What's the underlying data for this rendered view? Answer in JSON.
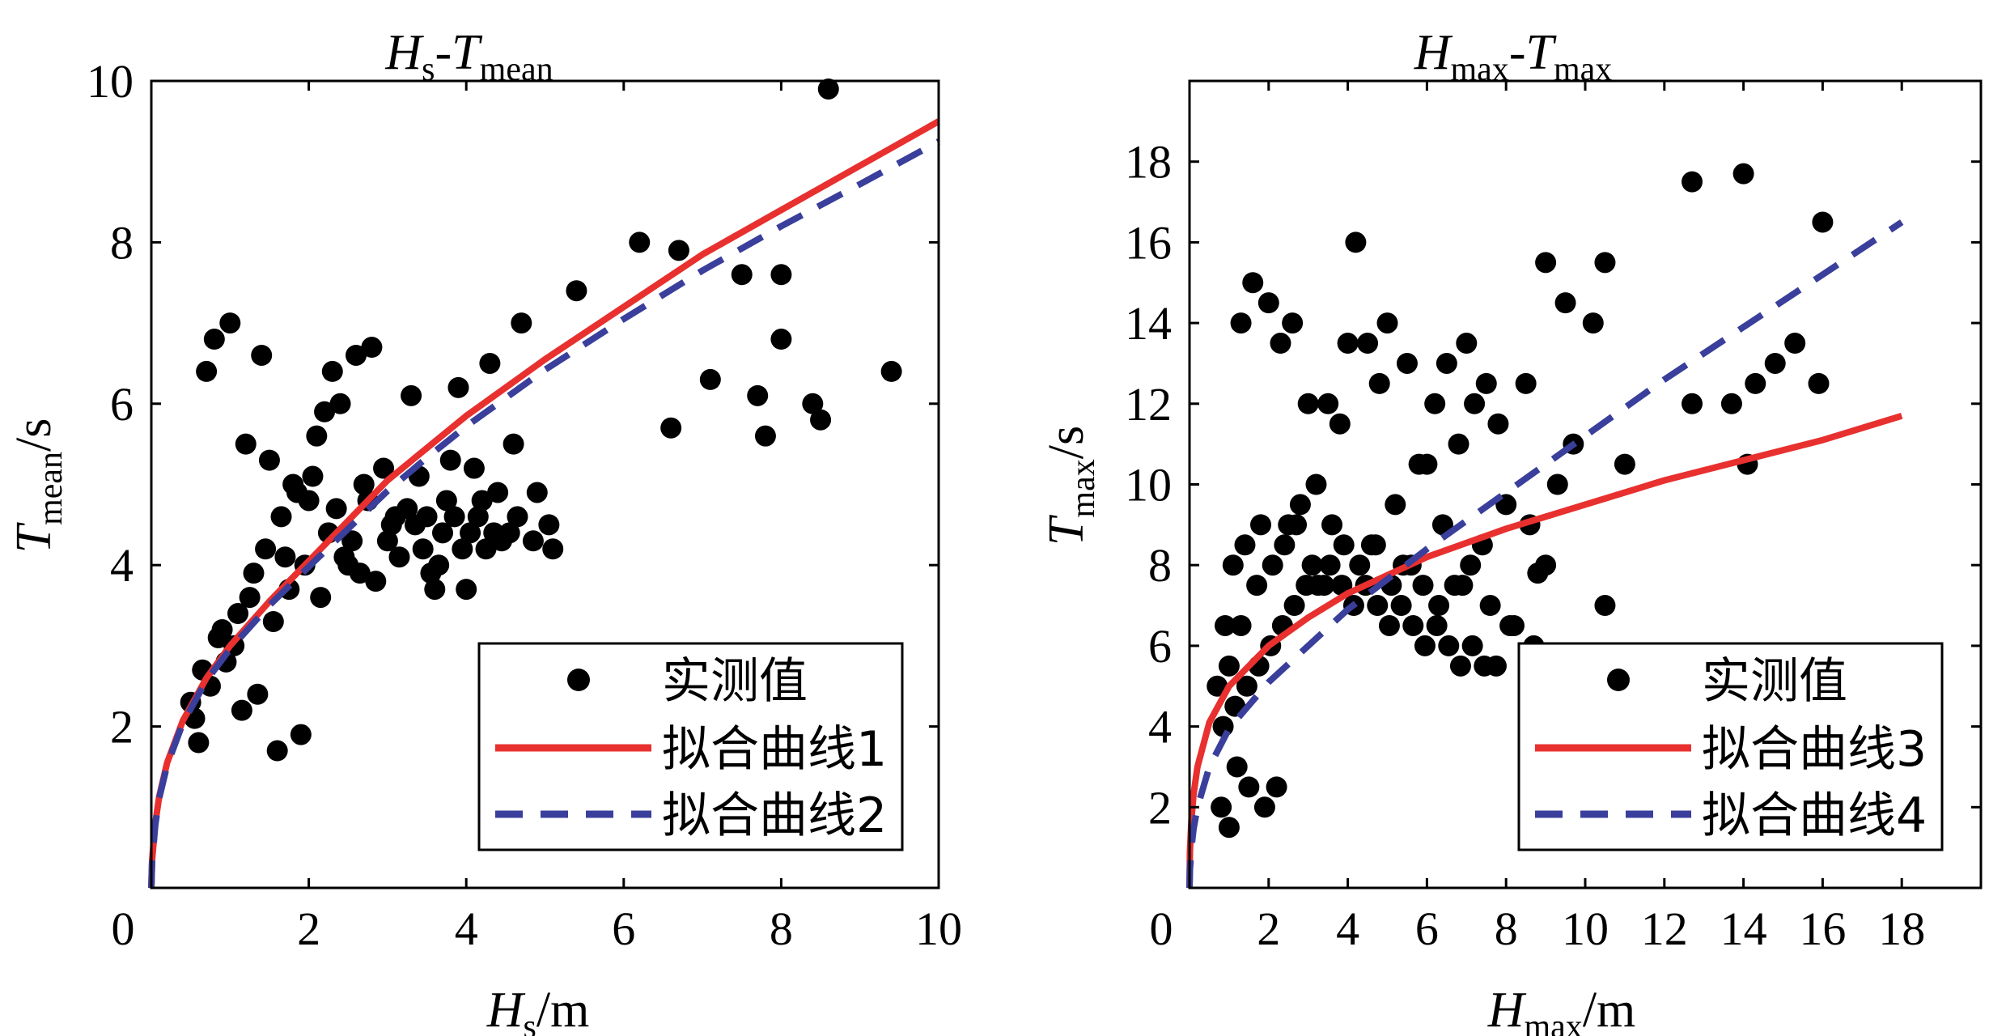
{
  "chart_data": [
    {
      "type": "scatter",
      "title": {
        "main": "H",
        "sub1": "s",
        "sep": "-T",
        "sub2": "mean"
      },
      "xlabel": {
        "main": "H",
        "sub": "s",
        "unit": "/m"
      },
      "ylabel": {
        "main": "T",
        "sub": "mean",
        "unit": "/s"
      },
      "xlim": [
        0,
        10
      ],
      "ylim": [
        0,
        10
      ],
      "xticks": [
        "0",
        "2",
        "4",
        "6",
        "8",
        "10"
      ],
      "yticks": [
        "2",
        "4",
        "6",
        "8",
        "10"
      ],
      "grid": false,
      "legend_position": "bottom-right",
      "legend": [
        "实测值",
        "拟合曲线1",
        "拟合曲线2"
      ],
      "series": [
        {
          "name": "实测值",
          "kind": "scatter",
          "color": "#000000",
          "x": [
            8.6,
            9.4,
            6.6,
            7.1,
            7.5,
            7.7,
            7.8,
            8.0,
            8.0,
            8.4,
            8.5,
            6.2,
            6.7,
            5.4,
            4.7,
            4.3,
            3.9,
            0.8,
            1.0,
            1.4,
            0.7,
            2.6,
            2.8,
            3.3,
            2.1,
            2.3,
            4.1,
            4.6,
            4.9,
            5.1,
            4.0,
            3.6,
            1.6,
            1.9,
            0.5,
            0.6,
            2.5,
            3.0,
            3.5,
            3.8,
            4.2,
            4.4,
            1.2,
            1.5,
            1.8,
            2.0,
            2.2,
            2.4,
            2.7,
            3.1,
            3.4,
            3.7,
            0.9,
            1.1,
            1.3,
            1.7,
            0.55,
            0.75,
            0.95,
            1.05,
            1.25,
            1.45,
            1.65,
            1.85,
            2.05,
            2.25,
            2.45,
            2.65,
            2.85,
            3.05,
            3.25,
            3.45,
            3.65,
            3.85,
            4.05,
            4.25,
            4.45,
            4.65,
            4.85,
            5.05,
            0.65,
            0.85,
            1.15,
            1.35,
            1.55,
            1.75,
            1.95,
            2.15,
            2.35,
            2.55,
            2.75,
            2.95,
            3.15,
            3.35,
            3.55,
            3.75,
            3.95,
            4.15,
            4.35,
            4.55
          ],
          "y": [
            9.9,
            6.4,
            5.7,
            6.3,
            7.6,
            6.1,
            5.6,
            7.6,
            6.8,
            6.0,
            5.8,
            8.0,
            7.9,
            7.4,
            7.0,
            6.5,
            6.2,
            6.8,
            7.0,
            6.6,
            6.4,
            6.6,
            6.7,
            6.1,
            5.6,
            6.4,
            5.2,
            5.5,
            4.9,
            4.2,
            3.7,
            3.7,
            1.7,
            1.9,
            2.3,
            1.8,
            4.0,
            4.3,
            4.6,
            5.3,
            4.8,
            4.9,
            5.5,
            5.3,
            5.0,
            4.8,
            5.9,
            6.0,
            5.0,
            4.6,
            5.1,
            4.4,
            3.2,
            3.4,
            3.9,
            4.1,
            2.1,
            2.5,
            2.8,
            3.0,
            3.6,
            4.2,
            4.6,
            4.9,
            5.1,
            4.4,
            4.1,
            3.9,
            3.8,
            4.5,
            4.7,
            4.2,
            4.0,
            4.6,
            4.4,
            4.2,
            4.3,
            4.6,
            4.3,
            4.5,
            2.7,
            3.1,
            2.2,
            2.4,
            3.3,
            3.7,
            4.0,
            3.6,
            4.7,
            4.3,
            4.8,
            5.2,
            4.1,
            4.5,
            3.9,
            4.8,
            4.2,
            4.6,
            4.4,
            4.4
          ]
        },
        {
          "name": "拟合曲线1",
          "kind": "line",
          "style": "solid",
          "color": "#e8302f",
          "x": [
            0,
            0.01,
            0.05,
            0.1,
            0.2,
            0.4,
            0.7,
            1.0,
            1.5,
            2.0,
            2.5,
            3.0,
            3.5,
            4.0,
            5.0,
            6.0,
            7.0,
            8.0,
            9.0,
            10.0
          ],
          "y": [
            0,
            0.35,
            0.8,
            1.13,
            1.55,
            2.07,
            2.6,
            3.0,
            3.55,
            4.05,
            4.55,
            5.05,
            5.45,
            5.85,
            6.55,
            7.2,
            7.85,
            8.4,
            8.95,
            9.5
          ]
        },
        {
          "name": "拟合曲线2",
          "kind": "line",
          "style": "dashed",
          "color": "#3a3f9c",
          "x": [
            0,
            0.01,
            0.05,
            0.1,
            0.2,
            0.4,
            0.7,
            1.0,
            1.5,
            2.0,
            2.5,
            3.0,
            3.5,
            4.0,
            5.0,
            6.0,
            7.0,
            8.0,
            9.0,
            10.0
          ],
          "y": [
            0,
            0.33,
            0.78,
            1.11,
            1.52,
            2.04,
            2.57,
            2.96,
            3.5,
            3.98,
            4.45,
            4.92,
            5.33,
            5.72,
            6.42,
            7.05,
            7.65,
            8.2,
            8.72,
            9.25
          ]
        }
      ]
    },
    {
      "type": "scatter",
      "title": {
        "main": "H",
        "sub1": "max",
        "sep": "-T",
        "sub2": "max"
      },
      "xlabel": {
        "main": "H",
        "sub": "max",
        "unit": "/m"
      },
      "ylabel": {
        "main": "T",
        "sub": "max",
        "unit": "/s"
      },
      "xlim": [
        0,
        20
      ],
      "ylim": [
        0,
        20
      ],
      "xticks": [
        "0",
        "2",
        "4",
        "6",
        "8",
        "10",
        "12",
        "14",
        "16",
        "18"
      ],
      "yticks": [
        "2",
        "4",
        "6",
        "8",
        "10",
        "12",
        "14",
        "16",
        "18"
      ],
      "grid": false,
      "legend_position": "bottom-right",
      "legend": [
        "实测值",
        "拟合曲线3",
        "拟合曲线4"
      ],
      "series": [
        {
          "name": "实测值",
          "kind": "scatter",
          "color": "#000000",
          "x": [
            12.7,
            14.0,
            16.0,
            4.2,
            10.5,
            15.3,
            15.9,
            14.8,
            14.3,
            13.7,
            12.7,
            14.1,
            11.0,
            9.3,
            9.0,
            8.8,
            8.6,
            8.0,
            7.5,
            7.0,
            6.5,
            6.2,
            5.8,
            5.5,
            5.0,
            4.8,
            4.5,
            4.0,
            3.8,
            3.5,
            3.0,
            2.6,
            2.3,
            2.0,
            1.6,
            1.3,
            1.0,
            0.8,
            2.2,
            1.9,
            1.5,
            1.2,
            9.7,
            10.5,
            10.2,
            9.5,
            9.0,
            8.5,
            7.8,
            7.2,
            6.8,
            6.0,
            3.2,
            2.8,
            2.5,
            1.8,
            1.4,
            1.1,
            0.9,
            3.6,
            4.6,
            5.2,
            5.6,
            6.4,
            6.9,
            7.4,
            8.2,
            0.7,
            1.0,
            1.3,
            1.7,
            2.1,
            2.4,
            2.7,
            3.1,
            3.4,
            3.9,
            4.3,
            4.7,
            5.1,
            5.4,
            5.9,
            6.3,
            6.7,
            7.1,
            7.6,
            8.1,
            8.7,
            9.2,
            0.85,
            1.15,
            1.45,
            1.75,
            2.05,
            2.35,
            2.65,
            2.95,
            3.25,
            3.55,
            3.85,
            4.15,
            4.45,
            4.75,
            5.05,
            5.35,
            5.65,
            5.95,
            6.25,
            6.55,
            6.85,
            7.15,
            7.45,
            7.75
          ],
          "y": [
            17.5,
            17.7,
            16.5,
            16.0,
            15.5,
            13.5,
            12.5,
            13.0,
            12.5,
            12.0,
            12.0,
            10.5,
            10.5,
            10.0,
            8.0,
            7.8,
            9.0,
            9.5,
            12.5,
            13.5,
            13.0,
            12.0,
            10.5,
            13.0,
            14.0,
            12.5,
            13.5,
            13.5,
            11.5,
            12.0,
            12.0,
            14.0,
            13.5,
            14.5,
            15.0,
            14.0,
            1.5,
            2.0,
            2.5,
            2.0,
            2.5,
            3.0,
            11.0,
            7.0,
            14.0,
            14.5,
            15.5,
            12.5,
            11.5,
            12.0,
            11.0,
            10.5,
            10.0,
            9.5,
            9.0,
            9.0,
            8.5,
            8.0,
            6.5,
            9.0,
            8.5,
            9.5,
            8.0,
            9.0,
            7.5,
            8.5,
            6.5,
            5.0,
            5.5,
            6.5,
            7.5,
            8.0,
            8.5,
            9.0,
            8.0,
            7.5,
            8.5,
            8.0,
            8.5,
            7.5,
            8.0,
            7.5,
            7.0,
            7.5,
            8.0,
            7.0,
            6.5,
            6.0,
            5.5,
            4.0,
            4.5,
            5.0,
            5.5,
            6.0,
            6.5,
            7.0,
            7.5,
            7.5,
            8.0,
            7.5,
            7.0,
            7.5,
            7.0,
            6.5,
            7.0,
            6.5,
            6.0,
            6.5,
            6.0,
            5.5,
            6.0,
            5.5,
            5.5
          ]
        },
        {
          "name": "拟合曲线3",
          "kind": "line",
          "style": "solid",
          "color": "#e8302f",
          "x": [
            0,
            0.01,
            0.05,
            0.1,
            0.2,
            0.5,
            1.0,
            2.0,
            3.0,
            4.0,
            6.0,
            8.0,
            10.0,
            12.0,
            14.0,
            16.0,
            18.0
          ],
          "y": [
            0,
            0.9,
            1.7,
            2.3,
            3.0,
            4.1,
            5.0,
            6.0,
            6.7,
            7.3,
            8.2,
            8.9,
            9.5,
            10.1,
            10.6,
            11.1,
            11.7
          ]
        },
        {
          "name": "拟合曲线4",
          "kind": "line",
          "style": "dashed",
          "color": "#3a3f9c",
          "x": [
            0,
            0.01,
            0.05,
            0.1,
            0.2,
            0.5,
            1.0,
            2.0,
            3.0,
            4.0,
            6.0,
            8.0,
            10.0,
            12.0,
            14.0,
            16.0,
            18.0
          ],
          "y": [
            0,
            0.45,
            1.0,
            1.45,
            2.0,
            3.0,
            3.95,
            5.1,
            6.0,
            6.9,
            8.4,
            9.8,
            11.2,
            12.6,
            13.9,
            15.2,
            16.5
          ]
        }
      ]
    }
  ]
}
